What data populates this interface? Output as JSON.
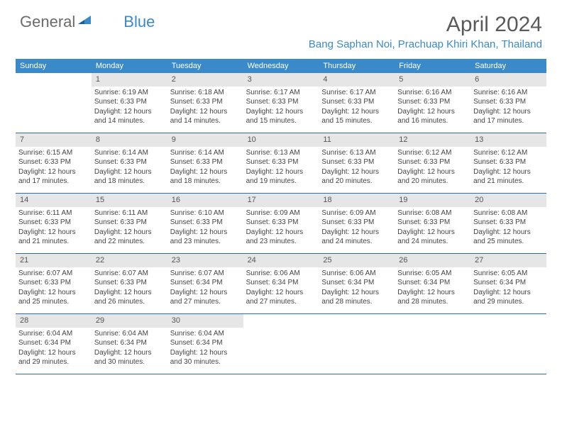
{
  "logo": {
    "text1": "General",
    "text2": "Blue"
  },
  "title": "April 2024",
  "location": "Bang Saphan Noi, Prachuap Khiri Khan, Thailand",
  "colors": {
    "header_bg": "#3a8ac9",
    "header_text": "#ffffff",
    "daynum_bg": "#e6e6e6",
    "row_border": "#2d6ea6",
    "logo_gray": "#6b6b6b",
    "logo_blue": "#3a8ac9",
    "title_color": "#5a5a5a"
  },
  "weekdays": [
    "Sunday",
    "Monday",
    "Tuesday",
    "Wednesday",
    "Thursday",
    "Friday",
    "Saturday"
  ],
  "weeks": [
    [
      null,
      {
        "n": "1",
        "sr": "6:19 AM",
        "ss": "6:33 PM",
        "dl": "12 hours and 14 minutes."
      },
      {
        "n": "2",
        "sr": "6:18 AM",
        "ss": "6:33 PM",
        "dl": "12 hours and 14 minutes."
      },
      {
        "n": "3",
        "sr": "6:17 AM",
        "ss": "6:33 PM",
        "dl": "12 hours and 15 minutes."
      },
      {
        "n": "4",
        "sr": "6:17 AM",
        "ss": "6:33 PM",
        "dl": "12 hours and 15 minutes."
      },
      {
        "n": "5",
        "sr": "6:16 AM",
        "ss": "6:33 PM",
        "dl": "12 hours and 16 minutes."
      },
      {
        "n": "6",
        "sr": "6:16 AM",
        "ss": "6:33 PM",
        "dl": "12 hours and 17 minutes."
      }
    ],
    [
      {
        "n": "7",
        "sr": "6:15 AM",
        "ss": "6:33 PM",
        "dl": "12 hours and 17 minutes."
      },
      {
        "n": "8",
        "sr": "6:14 AM",
        "ss": "6:33 PM",
        "dl": "12 hours and 18 minutes."
      },
      {
        "n": "9",
        "sr": "6:14 AM",
        "ss": "6:33 PM",
        "dl": "12 hours and 18 minutes."
      },
      {
        "n": "10",
        "sr": "6:13 AM",
        "ss": "6:33 PM",
        "dl": "12 hours and 19 minutes."
      },
      {
        "n": "11",
        "sr": "6:13 AM",
        "ss": "6:33 PM",
        "dl": "12 hours and 20 minutes."
      },
      {
        "n": "12",
        "sr": "6:12 AM",
        "ss": "6:33 PM",
        "dl": "12 hours and 20 minutes."
      },
      {
        "n": "13",
        "sr": "6:12 AM",
        "ss": "6:33 PM",
        "dl": "12 hours and 21 minutes."
      }
    ],
    [
      {
        "n": "14",
        "sr": "6:11 AM",
        "ss": "6:33 PM",
        "dl": "12 hours and 21 minutes."
      },
      {
        "n": "15",
        "sr": "6:11 AM",
        "ss": "6:33 PM",
        "dl": "12 hours and 22 minutes."
      },
      {
        "n": "16",
        "sr": "6:10 AM",
        "ss": "6:33 PM",
        "dl": "12 hours and 23 minutes."
      },
      {
        "n": "17",
        "sr": "6:09 AM",
        "ss": "6:33 PM",
        "dl": "12 hours and 23 minutes."
      },
      {
        "n": "18",
        "sr": "6:09 AM",
        "ss": "6:33 PM",
        "dl": "12 hours and 24 minutes."
      },
      {
        "n": "19",
        "sr": "6:08 AM",
        "ss": "6:33 PM",
        "dl": "12 hours and 24 minutes."
      },
      {
        "n": "20",
        "sr": "6:08 AM",
        "ss": "6:33 PM",
        "dl": "12 hours and 25 minutes."
      }
    ],
    [
      {
        "n": "21",
        "sr": "6:07 AM",
        "ss": "6:33 PM",
        "dl": "12 hours and 25 minutes."
      },
      {
        "n": "22",
        "sr": "6:07 AM",
        "ss": "6:33 PM",
        "dl": "12 hours and 26 minutes."
      },
      {
        "n": "23",
        "sr": "6:07 AM",
        "ss": "6:34 PM",
        "dl": "12 hours and 27 minutes."
      },
      {
        "n": "24",
        "sr": "6:06 AM",
        "ss": "6:34 PM",
        "dl": "12 hours and 27 minutes."
      },
      {
        "n": "25",
        "sr": "6:06 AM",
        "ss": "6:34 PM",
        "dl": "12 hours and 28 minutes."
      },
      {
        "n": "26",
        "sr": "6:05 AM",
        "ss": "6:34 PM",
        "dl": "12 hours and 28 minutes."
      },
      {
        "n": "27",
        "sr": "6:05 AM",
        "ss": "6:34 PM",
        "dl": "12 hours and 29 minutes."
      }
    ],
    [
      {
        "n": "28",
        "sr": "6:04 AM",
        "ss": "6:34 PM",
        "dl": "12 hours and 29 minutes."
      },
      {
        "n": "29",
        "sr": "6:04 AM",
        "ss": "6:34 PM",
        "dl": "12 hours and 30 minutes."
      },
      {
        "n": "30",
        "sr": "6:04 AM",
        "ss": "6:34 PM",
        "dl": "12 hours and 30 minutes."
      },
      null,
      null,
      null,
      null
    ]
  ],
  "labels": {
    "sunrise": "Sunrise:",
    "sunset": "Sunset:",
    "daylight": "Daylight:"
  }
}
